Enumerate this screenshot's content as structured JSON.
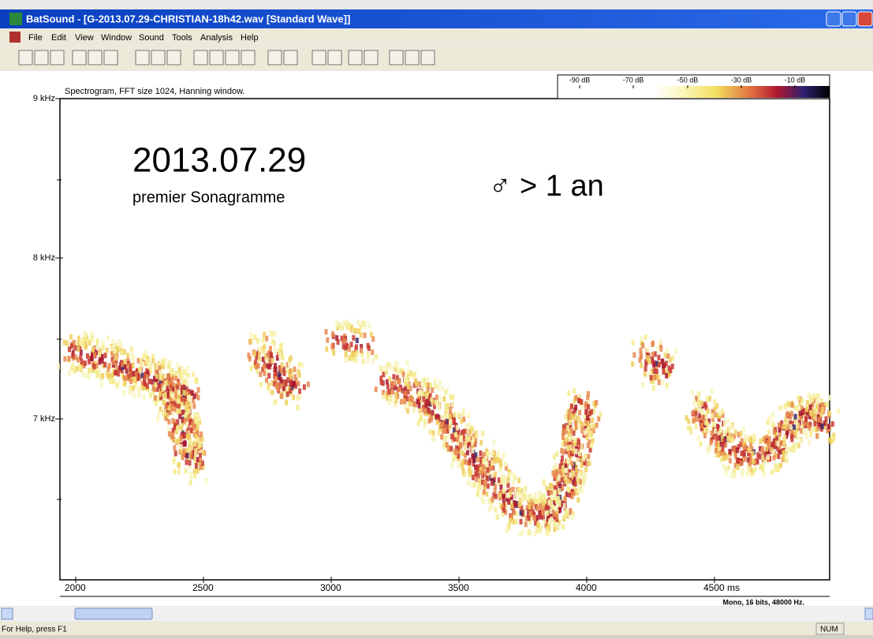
{
  "window": {
    "title": "BatSound - [G-2013.07.29-CHRISTIAN-18h42.wav [Standard Wave]]"
  },
  "menu": [
    "File",
    "Edit",
    "View",
    "Window",
    "Sound",
    "Tools",
    "Analysis",
    "Help"
  ],
  "spectrogram": {
    "caption": "Spectrogram, FFT size 1024, Hanning window.",
    "y_axis_labels": [
      "9 kHz",
      "8 kHz",
      "7 kHz"
    ],
    "x_axis_labels": [
      "2000",
      "2500",
      "3000",
      "3500",
      "4000",
      "4500 ms"
    ],
    "colorbar_labels": [
      "-90 dB",
      "-70 dB",
      "-50 dB",
      "-30 dB",
      "-10 dB"
    ],
    "annotations": {
      "date": "2013.07.29",
      "subtitle": "premier Sonagramme",
      "note": "♂ > 1 an"
    },
    "format": "Mono, 16 bits, 48000 Hz."
  },
  "status_bar": {
    "help": "For Help, press F1",
    "indicator": "NUM"
  }
}
